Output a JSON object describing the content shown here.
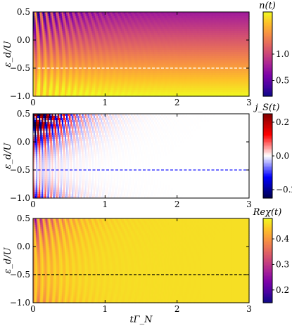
{
  "chart_data": [
    {
      "type": "heatmap",
      "ylabel": "ε_d/U",
      "colorbar_label": "n(t)",
      "colorbar_ticks": [
        "1.0",
        "0.5"
      ],
      "colorbar_tick_values": [
        1.0,
        0.5
      ],
      "vmin": 0.2,
      "vmax": 1.8,
      "colormap": "plasma",
      "ylim": [
        -1.0,
        0.5
      ],
      "xlim": [
        0,
        3
      ],
      "yticks": [
        "0.5",
        "0.0",
        "−0.5",
        "−1.0"
      ],
      "ytick_values": [
        0.5,
        0.0,
        -0.5,
        -1.0
      ],
      "xticks": [
        "0",
        "1",
        "2",
        "3"
      ],
      "xtick_values": [
        0,
        1,
        2,
        3
      ],
      "dashed_line_y": -0.5,
      "dashed_line_color": "#ffffff",
      "steady_value_at_eps_minus1": 1.6,
      "steady_value_at_eps_plus05": 0.45
    },
    {
      "type": "heatmap",
      "ylabel": "ε_d/U",
      "colorbar_label": "j_S(t)",
      "colorbar_ticks": [
        "0.2",
        "0.0",
        "−0.2"
      ],
      "colorbar_tick_values": [
        0.2,
        0.0,
        -0.2
      ],
      "vmin": -0.25,
      "vmax": 0.25,
      "colormap": "seismic",
      "ylim": [
        -1.0,
        0.5
      ],
      "xlim": [
        0,
        3
      ],
      "yticks": [
        "0.5",
        "0.0",
        "−0.5",
        "−1.0"
      ],
      "ytick_values": [
        0.5,
        0.0,
        -0.5,
        -1.0
      ],
      "xticks": [
        "0",
        "1",
        "2",
        "3"
      ],
      "xtick_values": [
        0,
        1,
        2,
        3
      ],
      "dashed_line_y": -0.5,
      "dashed_line_color": "#1a1aff",
      "steady_value": 0.0
    },
    {
      "type": "heatmap",
      "ylabel": "ε_d/U",
      "xlabel": "tΓ_N",
      "colorbar_label": "Reχ(t)",
      "colorbar_ticks": [
        "0.4",
        "0.3",
        "0.2"
      ],
      "colorbar_tick_values": [
        0.4,
        0.3,
        0.2
      ],
      "vmin": 0.15,
      "vmax": 0.48,
      "colormap": "plasma",
      "ylim": [
        -1.0,
        0.5
      ],
      "xlim": [
        0,
        3
      ],
      "yticks": [
        "0.5",
        "0.0",
        "−0.5",
        "−1.0"
      ],
      "ytick_values": [
        0.5,
        0.0,
        -0.5,
        -1.0
      ],
      "xticks": [
        "0",
        "1",
        "2",
        "3"
      ],
      "xtick_values": [
        0,
        1,
        2,
        3
      ],
      "dashed_line_y": -0.5,
      "dashed_line_color": "#000000",
      "steady_value": 0.46
    }
  ]
}
